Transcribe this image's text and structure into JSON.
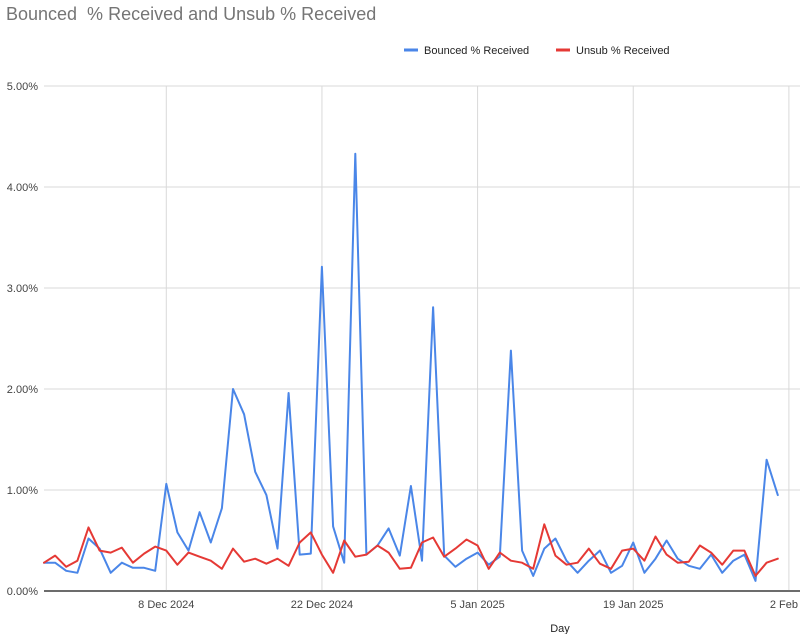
{
  "chart_data": {
    "type": "line",
    "title": "Bounced  % Received and Unsub % Received",
    "xlabel": "Day",
    "ylabel": "",
    "ylim": [
      0,
      5
    ],
    "y_ticks": [
      "0.00%",
      "1.00%",
      "2.00%",
      "3.00%",
      "4.00%",
      "5.00%"
    ],
    "x_range": [
      "2024-11-27",
      "2025-02-03"
    ],
    "x_ticks": [
      {
        "date": "2024-12-08",
        "label": "8 Dec 2024"
      },
      {
        "date": "2024-12-22",
        "label": "22 Dec 2024"
      },
      {
        "date": "2025-01-05",
        "label": "5 Jan 2025"
      },
      {
        "date": "2025-01-19",
        "label": "19 Jan 2025"
      },
      {
        "date": "2025-02-02",
        "label": "2 Feb"
      }
    ],
    "grid": true,
    "legend_position": "top-right",
    "series": [
      {
        "name": "Bounced  % Received",
        "color": "#4a86e8",
        "points": [
          [
            "2024-11-27",
            0.28
          ],
          [
            "2024-11-28",
            0.28
          ],
          [
            "2024-11-29",
            0.2
          ],
          [
            "2024-11-30",
            0.18
          ],
          [
            "2024-12-01",
            0.52
          ],
          [
            "2024-12-02",
            0.42
          ],
          [
            "2024-12-03",
            0.18
          ],
          [
            "2024-12-04",
            0.28
          ],
          [
            "2024-12-05",
            0.23
          ],
          [
            "2024-12-06",
            0.23
          ],
          [
            "2024-12-07",
            0.2
          ],
          [
            "2024-12-08",
            1.06
          ],
          [
            "2024-12-09",
            0.58
          ],
          [
            "2024-12-10",
            0.4
          ],
          [
            "2024-12-11",
            0.78
          ],
          [
            "2024-12-12",
            0.48
          ],
          [
            "2024-12-13",
            0.82
          ],
          [
            "2024-12-14",
            2.0
          ],
          [
            "2024-12-15",
            1.75
          ],
          [
            "2024-12-16",
            1.18
          ],
          [
            "2024-12-17",
            0.95
          ],
          [
            "2024-12-18",
            0.42
          ],
          [
            "2024-12-19",
            1.96
          ],
          [
            "2024-12-20",
            0.36
          ],
          [
            "2024-12-21",
            0.37
          ],
          [
            "2024-12-22",
            3.21
          ],
          [
            "2024-12-23",
            0.64
          ],
          [
            "2024-12-24",
            0.28
          ],
          [
            "2024-12-25",
            4.33
          ],
          [
            "2024-12-26",
            0.36
          ],
          [
            "2024-12-27",
            0.45
          ],
          [
            "2024-12-28",
            0.62
          ],
          [
            "2024-12-29",
            0.35
          ],
          [
            "2024-12-30",
            1.04
          ],
          [
            "2024-12-31",
            0.3
          ],
          [
            "2025-01-01",
            2.81
          ],
          [
            "2025-01-02",
            0.35
          ],
          [
            "2025-01-03",
            0.24
          ],
          [
            "2025-01-04",
            0.32
          ],
          [
            "2025-01-05",
            0.38
          ],
          [
            "2025-01-06",
            0.26
          ],
          [
            "2025-01-07",
            0.34
          ],
          [
            "2025-01-08",
            2.38
          ],
          [
            "2025-01-09",
            0.4
          ],
          [
            "2025-01-10",
            0.15
          ],
          [
            "2025-01-11",
            0.42
          ],
          [
            "2025-01-12",
            0.52
          ],
          [
            "2025-01-13",
            0.3
          ],
          [
            "2025-01-14",
            0.18
          ],
          [
            "2025-01-15",
            0.3
          ],
          [
            "2025-01-16",
            0.4
          ],
          [
            "2025-01-17",
            0.18
          ],
          [
            "2025-01-18",
            0.25
          ],
          [
            "2025-01-19",
            0.48
          ],
          [
            "2025-01-20",
            0.18
          ],
          [
            "2025-01-21",
            0.32
          ],
          [
            "2025-01-22",
            0.5
          ],
          [
            "2025-01-23",
            0.32
          ],
          [
            "2025-01-24",
            0.25
          ],
          [
            "2025-01-25",
            0.22
          ],
          [
            "2025-01-26",
            0.36
          ],
          [
            "2025-01-27",
            0.18
          ],
          [
            "2025-01-28",
            0.3
          ],
          [
            "2025-01-29",
            0.36
          ],
          [
            "2025-01-30",
            0.1
          ],
          [
            "2025-01-31",
            1.3
          ],
          [
            "2025-02-01",
            0.95
          ]
        ]
      },
      {
        "name": "Unsub % Received",
        "color": "#e53935",
        "points": [
          [
            "2024-11-27",
            0.28
          ],
          [
            "2024-11-28",
            0.35
          ],
          [
            "2024-11-29",
            0.24
          ],
          [
            "2024-11-30",
            0.3
          ],
          [
            "2024-12-01",
            0.63
          ],
          [
            "2024-12-02",
            0.4
          ],
          [
            "2024-12-03",
            0.38
          ],
          [
            "2024-12-04",
            0.43
          ],
          [
            "2024-12-05",
            0.28
          ],
          [
            "2024-12-06",
            0.37
          ],
          [
            "2024-12-07",
            0.44
          ],
          [
            "2024-12-08",
            0.4
          ],
          [
            "2024-12-09",
            0.26
          ],
          [
            "2024-12-10",
            0.38
          ],
          [
            "2024-12-11",
            0.34
          ],
          [
            "2024-12-12",
            0.3
          ],
          [
            "2024-12-13",
            0.22
          ],
          [
            "2024-12-14",
            0.42
          ],
          [
            "2024-12-15",
            0.29
          ],
          [
            "2024-12-16",
            0.32
          ],
          [
            "2024-12-17",
            0.27
          ],
          [
            "2024-12-18",
            0.32
          ],
          [
            "2024-12-19",
            0.25
          ],
          [
            "2024-12-20",
            0.48
          ],
          [
            "2024-12-21",
            0.58
          ],
          [
            "2024-12-22",
            0.36
          ],
          [
            "2024-12-23",
            0.18
          ],
          [
            "2024-12-24",
            0.5
          ],
          [
            "2024-12-25",
            0.34
          ],
          [
            "2024-12-26",
            0.36
          ],
          [
            "2024-12-27",
            0.45
          ],
          [
            "2024-12-28",
            0.38
          ],
          [
            "2024-12-29",
            0.22
          ],
          [
            "2024-12-30",
            0.23
          ],
          [
            "2024-12-31",
            0.48
          ],
          [
            "2025-01-01",
            0.53
          ],
          [
            "2025-01-02",
            0.34
          ],
          [
            "2025-01-03",
            0.42
          ],
          [
            "2025-01-04",
            0.51
          ],
          [
            "2025-01-05",
            0.45
          ],
          [
            "2025-01-06",
            0.22
          ],
          [
            "2025-01-07",
            0.38
          ],
          [
            "2025-01-08",
            0.3
          ],
          [
            "2025-01-09",
            0.28
          ],
          [
            "2025-01-10",
            0.22
          ],
          [
            "2025-01-11",
            0.66
          ],
          [
            "2025-01-12",
            0.35
          ],
          [
            "2025-01-13",
            0.26
          ],
          [
            "2025-01-14",
            0.28
          ],
          [
            "2025-01-15",
            0.42
          ],
          [
            "2025-01-16",
            0.27
          ],
          [
            "2025-01-17",
            0.22
          ],
          [
            "2025-01-18",
            0.4
          ],
          [
            "2025-01-19",
            0.42
          ],
          [
            "2025-01-20",
            0.3
          ],
          [
            "2025-01-21",
            0.54
          ],
          [
            "2025-01-22",
            0.36
          ],
          [
            "2025-01-23",
            0.28
          ],
          [
            "2025-01-24",
            0.29
          ],
          [
            "2025-01-25",
            0.45
          ],
          [
            "2025-01-26",
            0.38
          ],
          [
            "2025-01-27",
            0.26
          ],
          [
            "2025-01-28",
            0.4
          ],
          [
            "2025-01-29",
            0.4
          ],
          [
            "2025-01-30",
            0.15
          ],
          [
            "2025-01-31",
            0.28
          ],
          [
            "2025-02-01",
            0.32
          ]
        ]
      }
    ]
  }
}
